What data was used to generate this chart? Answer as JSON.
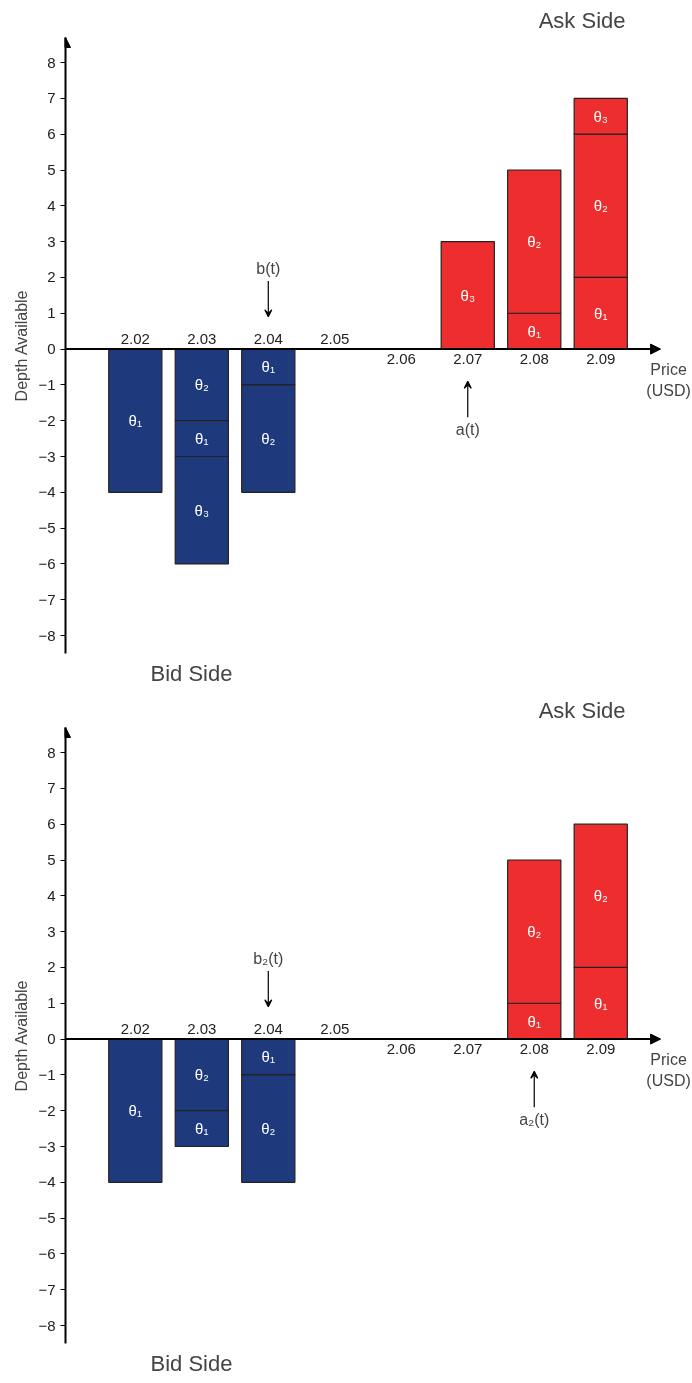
{
  "chart_data": [
    {
      "type": "bar",
      "stacked": true,
      "categories": [
        "2.02",
        "2.03",
        "2.04",
        "2.05",
        "2.06",
        "2.07",
        "2.08",
        "2.09"
      ],
      "xlabel": "Price (USD)",
      "ylabel": "Depth Available",
      "ylim": [
        -8.5,
        8.7
      ],
      "yticks": [
        -8,
        -7,
        -6,
        -5,
        -4,
        -3,
        -2,
        -1,
        0,
        1,
        2,
        3,
        4,
        5,
        6,
        7,
        8
      ],
      "grid": false,
      "annotations": [
        "Ask Side",
        "Bid Side",
        "b(t)",
        "a(t)"
      ],
      "series": [
        {
          "colors": [
            "#1f3a7c",
            "#1f3a7c",
            "#1f3a7c",
            null,
            null,
            "#ee2e2e",
            "#ee2e2e",
            "#ee2e2e"
          ],
          "values": [
            -4,
            -2,
            -1,
            null,
            null,
            3,
            1,
            2
          ],
          "value_labels": [
            "θ₁",
            "θ₂",
            "θ₁",
            null,
            null,
            "θ₃",
            "θ₁",
            "θ₁"
          ]
        },
        {
          "colors": [
            null,
            "#1f3a7c",
            "#1f3a7c",
            null,
            null,
            null,
            "#ee2e2e",
            "#ee2e2e"
          ],
          "values": [
            null,
            -1,
            -3,
            null,
            null,
            null,
            4,
            4
          ],
          "value_labels": [
            null,
            "θ₁",
            "θ₂",
            null,
            null,
            null,
            "θ₂",
            "θ₂"
          ]
        },
        {
          "colors": [
            null,
            "#1f3a7c",
            null,
            null,
            null,
            null,
            null,
            "#ee2e2e"
          ],
          "values": [
            null,
            -3,
            null,
            null,
            null,
            null,
            null,
            1
          ],
          "value_labels": [
            null,
            "θ₃",
            null,
            null,
            null,
            null,
            null,
            "θ₃"
          ]
        }
      ]
    },
    {
      "type": "bar",
      "stacked": true,
      "categories": [
        "2.02",
        "2.03",
        "2.04",
        "2.05",
        "2.06",
        "2.07",
        "2.08",
        "2.09"
      ],
      "xlabel": "Price (USD)",
      "ylabel": "Depth Available",
      "ylim": [
        -8.5,
        8.7
      ],
      "yticks": [
        -8,
        -7,
        -6,
        -5,
        -4,
        -3,
        -2,
        -1,
        0,
        1,
        2,
        3,
        4,
        5,
        6,
        7,
        8
      ],
      "grid": false,
      "annotations": [
        "Ask Side",
        "Bid Side",
        "b₂(t)",
        "a₂(t)"
      ],
      "series": [
        {
          "colors": [
            "#1f3a7c",
            "#1f3a7c",
            "#1f3a7c",
            null,
            null,
            null,
            "#ee2e2e",
            "#ee2e2e"
          ],
          "values": [
            -4,
            -2,
            -1,
            null,
            null,
            null,
            1,
            2
          ],
          "value_labels": [
            "θ₁",
            "θ₂",
            "θ₁",
            null,
            null,
            null,
            "θ₁",
            "θ₁"
          ]
        },
        {
          "colors": [
            null,
            "#1f3a7c",
            "#1f3a7c",
            null,
            null,
            null,
            "#ee2e2e",
            "#ee2e2e"
          ],
          "values": [
            null,
            -1,
            -3,
            null,
            null,
            null,
            4,
            4
          ],
          "value_labels": [
            null,
            "θ₁",
            "θ₂",
            null,
            null,
            null,
            "θ₂",
            "θ₂"
          ]
        }
      ]
    }
  ]
}
